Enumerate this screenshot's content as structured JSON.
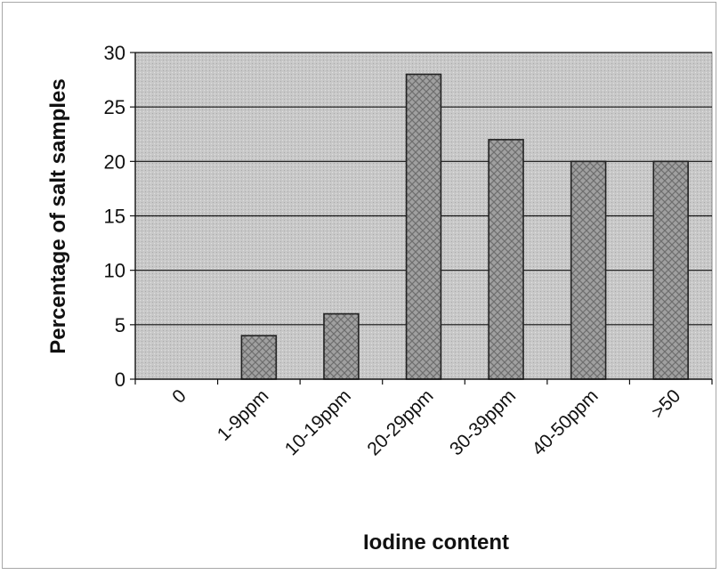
{
  "chart_data": {
    "type": "bar",
    "title": "",
    "xlabel": "Iodine content",
    "ylabel": "Percentage of salt samples",
    "categories": [
      "0",
      "1-9ppm",
      "10-19ppm",
      "20-29ppm",
      "30-39ppm",
      "40-50ppm",
      ">50"
    ],
    "values": [
      0,
      4,
      6,
      28,
      22,
      20,
      20
    ],
    "ylim": [
      0,
      30
    ],
    "yticks": [
      0,
      5,
      10,
      15,
      20,
      25,
      30
    ],
    "grid": true,
    "legend": "none",
    "colors": {
      "plot_background": "#c4c4c4",
      "bar_fill": "#9a9a9a",
      "bar_stroke": "#222222",
      "gridline": "#111111"
    }
  }
}
